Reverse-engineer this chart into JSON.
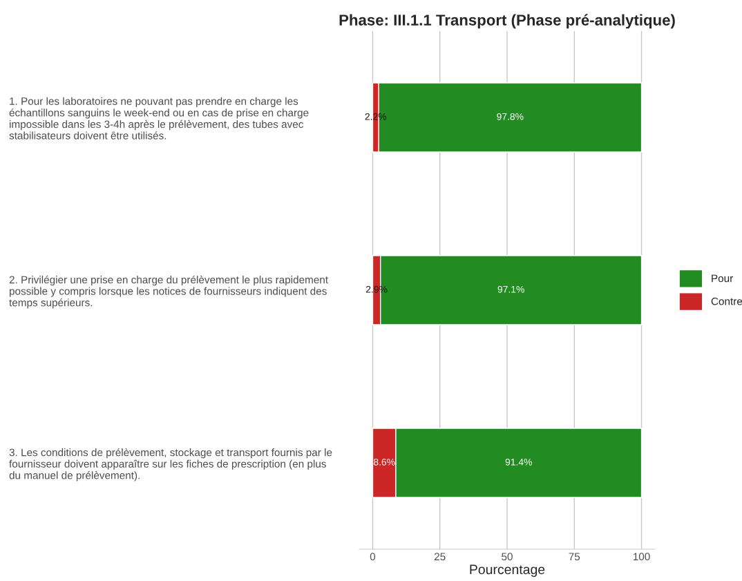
{
  "chart_data": {
    "type": "bar",
    "orientation": "horizontal",
    "stacked": true,
    "title": "Phase: III.1.1 Transport (Phase pré-analytique)",
    "xlabel": "Pourcentage",
    "categories": [
      "1. Pour les laboratoires ne pouvant pas prendre en charge les\néchantillons sanguins le week-end ou en cas de prise en charge\nimpossible dans les 3-4h après le prélèvement, des tubes avec\nstabilisateurs doivent être utilisés.",
      "2. Privilégier une prise en charge du prélèvement le plus rapidement\npossible y compris lorsque les notices de fournisseurs indiquent des\ntemps supérieurs.",
      "3. Les conditions de prélèvement, stockage et transport fournis par le\nfournisseur doivent apparaître sur les fiches de prescription (en plus\ndu manuel de prélèvement)."
    ],
    "series": [
      {
        "name": "Contre",
        "color": "#cd2626",
        "values": [
          2.2,
          2.9,
          8.6
        ],
        "value_labels": [
          "2.2%",
          "2.9%",
          "8.6%"
        ]
      },
      {
        "name": "Pour",
        "color": "#228b22",
        "values": [
          97.8,
          97.1,
          91.4
        ],
        "value_labels": [
          "97.8%",
          "97.1%",
          "91.4%"
        ]
      }
    ],
    "xlim": [
      -5,
      105
    ],
    "xticks": [
      0,
      25,
      50,
      75,
      100
    ],
    "grid": "x",
    "legend": "right"
  }
}
